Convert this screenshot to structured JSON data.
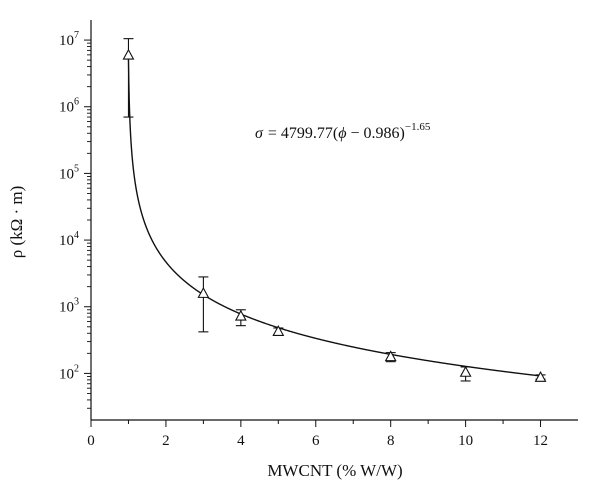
{
  "chart_data": {
    "type": "scatter",
    "xlabel": "MWCNT (% W/W)",
    "ylabel": "ρ (kΩ · m)",
    "y_scale": "log",
    "xlim": [
      0,
      13
    ],
    "ylim": [
      20,
      20000000
    ],
    "x_ticks": [
      0,
      2,
      4,
      6,
      8,
      10,
      12
    ],
    "y_ticks": [
      {
        "value": 100,
        "base": "10",
        "exp": "2"
      },
      {
        "value": 1000,
        "base": "10",
        "exp": "3"
      },
      {
        "value": 10000,
        "base": "10",
        "exp": "4"
      },
      {
        "value": 100000,
        "base": "10",
        "exp": "5"
      },
      {
        "value": 1000000,
        "base": "10",
        "exp": "6"
      },
      {
        "value": 10000000,
        "base": "10",
        "exp": "7"
      }
    ],
    "series": [
      {
        "marker": "open-triangle",
        "points": [
          {
            "x": 1,
            "y": 6000000,
            "err_low": 700000,
            "err_high": 10500000
          },
          {
            "x": 3,
            "y": 1600,
            "err_low": 420,
            "err_high": 2800
          },
          {
            "x": 4,
            "y": 730,
            "err_low": 520,
            "err_high": 900
          },
          {
            "x": 5,
            "y": 430,
            "err_low": 385,
            "err_high": 480
          },
          {
            "x": 8,
            "y": 180,
            "err_low": 150,
            "err_high": 205
          },
          {
            "x": 10,
            "y": 105,
            "err_low": 77,
            "err_high": 125
          },
          {
            "x": 12,
            "y": 88,
            "err_low": 82,
            "err_high": 95
          }
        ]
      }
    ],
    "fit": {
      "amplitude": 4799.77,
      "offset": 0.986,
      "exponent": -1.65,
      "equation_lhs": "σ",
      "equation_rhs_prefix": "= 4799.77(",
      "equation_phi": "ϕ",
      "equation_rhs_mid": " − 0.986)",
      "equation_exponent": "−1.65"
    },
    "grid": false,
    "legend": "none"
  }
}
